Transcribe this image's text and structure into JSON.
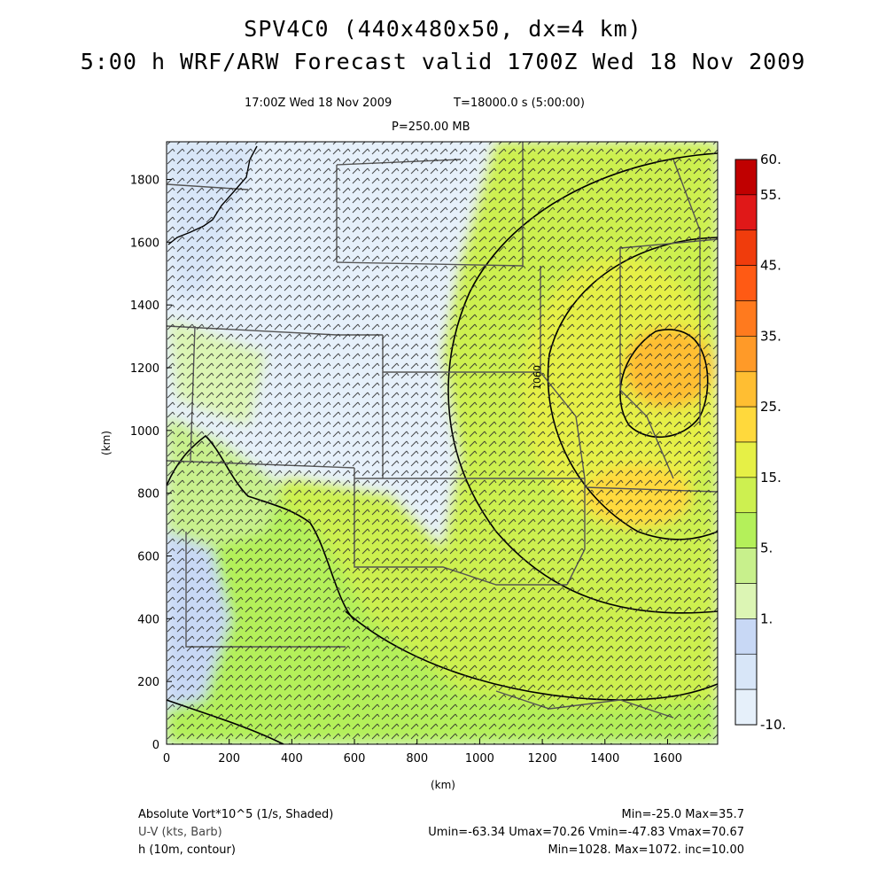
{
  "header": {
    "title_line1": "SPV4C0 (440x480x50, dx=4 km)",
    "title_line2": "5:00 h WRF/ARW Forecast valid 1700Z Wed 18 Nov 2009",
    "valid_time": "17:00Z Wed 18 Nov 2009",
    "model_time": "T=18000.0 s (5:00:00)",
    "level": "P=250.00 MB"
  },
  "axes": {
    "x_label": "(km)",
    "y_label": "(km)",
    "x_ticks": [
      "0",
      "200",
      "400",
      "600",
      "800",
      "1000",
      "1200",
      "1400",
      "1600"
    ],
    "y_ticks": [
      "0",
      "200",
      "400",
      "600",
      "800",
      "1000",
      "1200",
      "1400",
      "1600",
      "1800"
    ],
    "x_range": [
      0,
      1760
    ],
    "y_range": [
      0,
      1920
    ]
  },
  "colorbar": {
    "labels": [
      "60.",
      "55.",
      "45.",
      "35.",
      "25.",
      "15.",
      "5.",
      "1.",
      "-10."
    ],
    "colors": [
      "#c00000",
      "#e01818",
      "#f03c0c",
      "#ff5a14",
      "#ff7a1e",
      "#ff9a28",
      "#ffbe32",
      "#ffd93c",
      "#e6f046",
      "#cdf050",
      "#b4f05a",
      "#c8f08c",
      "#dcf5b4",
      "#c8d8f5",
      "#d8e6f8",
      "#e6f0fa"
    ]
  },
  "contour_labels": [
    "1060"
  ],
  "footer": {
    "field1": "Absolute Vort*10^5 (1/s, Shaded)",
    "field1_stats": "Min=-25.0 Max=35.7",
    "field2": "U-V (kts, Barb)",
    "field2_stats": "Umin=-63.34 Umax=70.26 Vmin=-47.83 Vmax=70.67",
    "field3": "h (10m, contour)",
    "field3_stats": "Min=1028. Max=1072. inc=10.00"
  }
}
